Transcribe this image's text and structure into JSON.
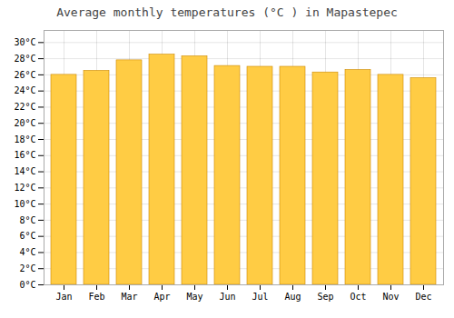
{
  "chart_data": {
    "type": "bar",
    "title": "Average monthly temperatures (°C ) in Mapastepec",
    "categories": [
      "Jan",
      "Feb",
      "Mar",
      "Apr",
      "May",
      "Jun",
      "Jul",
      "Aug",
      "Sep",
      "Oct",
      "Nov",
      "Dec"
    ],
    "values": [
      26.0,
      26.5,
      27.8,
      28.5,
      28.3,
      27.1,
      27.0,
      27.0,
      26.3,
      26.6,
      26.0,
      25.6
    ],
    "color": "#FFCC44",
    "ylim": [
      0,
      31.5
    ],
    "yticks": [
      {
        "value": 0,
        "label": "0°C"
      },
      {
        "value": 2,
        "label": "2°C"
      },
      {
        "value": 4,
        "label": "4°C"
      },
      {
        "value": 6,
        "label": "6°C"
      },
      {
        "value": 8,
        "label": "8°C"
      },
      {
        "value": 10,
        "label": "10°C"
      },
      {
        "value": 12,
        "label": "12°C"
      },
      {
        "value": 14,
        "label": "14°C"
      },
      {
        "value": 16,
        "label": "16°C"
      },
      {
        "value": 18,
        "label": "18°C"
      },
      {
        "value": 20,
        "label": "20°C"
      },
      {
        "value": 22,
        "label": "22°C"
      },
      {
        "value": 24,
        "label": "24°C"
      },
      {
        "value": 26,
        "label": "26°C"
      },
      {
        "value": 28,
        "label": "28°C"
      },
      {
        "value": 30,
        "label": "30°C"
      }
    ],
    "grid": true
  }
}
